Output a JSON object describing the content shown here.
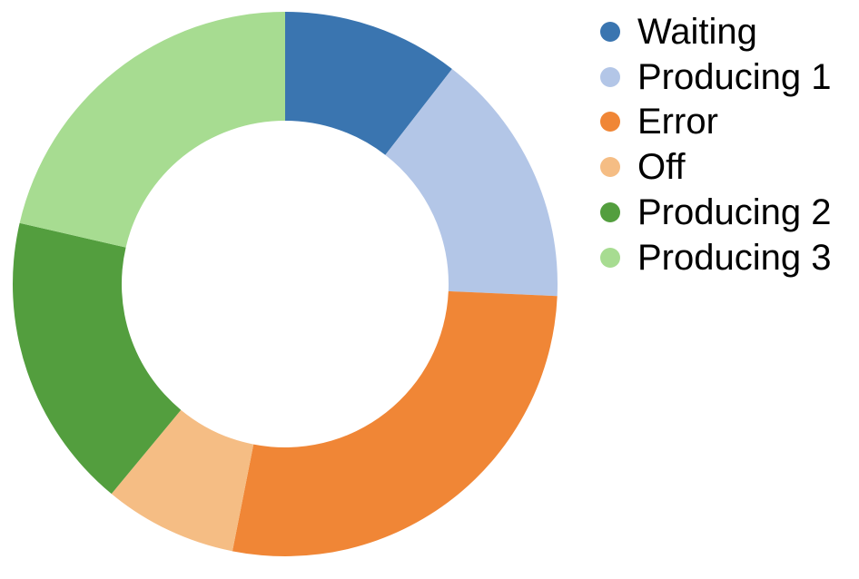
{
  "chart_data": {
    "type": "pie",
    "donut": true,
    "title": "",
    "legend_position": "top-right",
    "slices": [
      {
        "label": "Waiting",
        "value": 10.5,
        "color": "#3a75b0"
      },
      {
        "label": "Producing 1",
        "value": 15.2,
        "color": "#b3c6e7"
      },
      {
        "label": "Error",
        "value": 27.4,
        "color": "#f08636"
      },
      {
        "label": "Off",
        "value": 7.9,
        "color": "#f5bd84"
      },
      {
        "label": "Producing 2",
        "value": 17.6,
        "color": "#539e3e"
      },
      {
        "label": "Producing 3",
        "value": 21.4,
        "color": "#a7dc91"
      }
    ]
  }
}
